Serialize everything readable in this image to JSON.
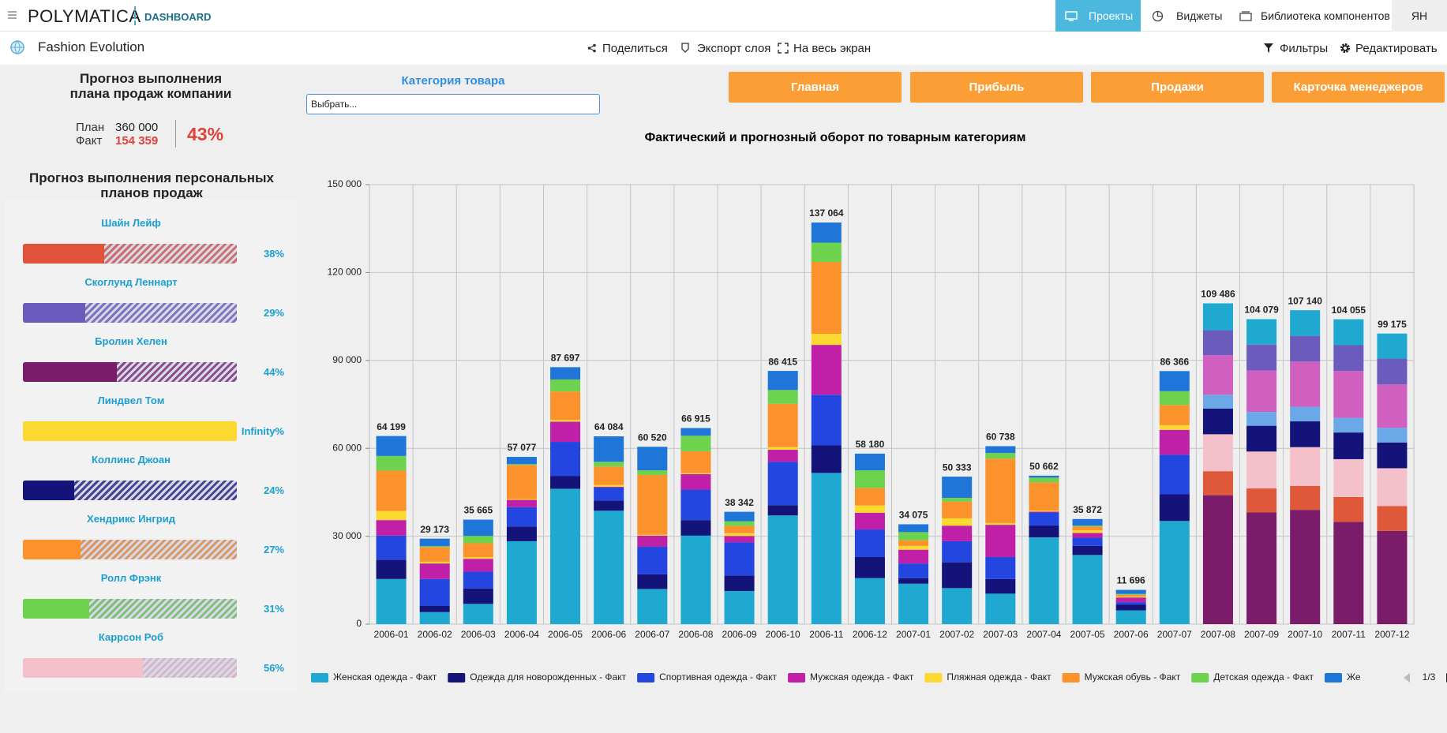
{
  "header": {
    "logo": "POLYMATICA",
    "section": "DASHBOARD",
    "nav": [
      "Проекты",
      "Виджеты",
      "Библиотека компонентов"
    ],
    "user": "ЯН",
    "page_title": "Fashion Evolution",
    "actions": [
      "Поделиться",
      "Экспорт слоя",
      "На весь экран"
    ],
    "tools": [
      "Фильтры",
      "Редактировать"
    ]
  },
  "kpi": {
    "title": "Прогноз выполнения плана продаж компании",
    "plan_label": "План",
    "plan": "360 000",
    "fact_label": "Факт",
    "fact": "154 359",
    "percent": "43%"
  },
  "managers": {
    "title": "Прогноз выполнения персональных планов продаж",
    "items": [
      {
        "name": "Шайн Лейф",
        "value": 38,
        "value_label": "38%",
        "color": "#e0533a"
      },
      {
        "name": "Скоглунд Леннарт",
        "value": 29,
        "value_label": "29%",
        "color": "#6a5bbd"
      },
      {
        "name": "Бролин Хелен",
        "value": 44,
        "value_label": "44%",
        "color": "#7b1c6a"
      },
      {
        "name": "Линдвел Том",
        "value": null,
        "value_label": "Infinity%",
        "color": "#fcd92e"
      },
      {
        "name": "Коллинс Джоан",
        "value": 24,
        "value_label": "24%",
        "color": "#13137a"
      },
      {
        "name": "Хендрикс Ингрид",
        "value": 27,
        "value_label": "27%",
        "color": "#fb922b"
      },
      {
        "name": "Ролл Фрэнк",
        "value": 31,
        "value_label": "31%",
        "color": "#6dd24e"
      },
      {
        "name": "Каррсон Роб",
        "value": 56,
        "value_label": "56%",
        "color": "#f4c0ca"
      }
    ]
  },
  "filter": {
    "label": "Категория товара",
    "placeholder": "Выбрать..."
  },
  "tabs": [
    "Главная",
    "Прибыль",
    "Продажи",
    "Карточка менеджеров"
  ],
  "chart_data": {
    "type": "bar",
    "stacked": true,
    "title": "Фактический и прогнозный оборот по товарным категориям",
    "categories": [
      "2006-01",
      "2006-02",
      "2006-03",
      "2006-04",
      "2006-05",
      "2006-06",
      "2006-07",
      "2006-08",
      "2006-09",
      "2006-10",
      "2006-11",
      "2006-12",
      "2007-01",
      "2007-02",
      "2007-03",
      "2007-04",
      "2007-05",
      "2007-06",
      "2007-07",
      "2007-08",
      "2007-09",
      "2007-10",
      "2007-11",
      "2007-12"
    ],
    "series": [
      {
        "name": "Женская одежда - Факт",
        "color": "#1fa8d0",
        "values": [
          15400,
          4100,
          6900,
          28300,
          46200,
          38700,
          12000,
          30200,
          11300,
          37100,
          51600,
          15700,
          13800,
          12300,
          10400,
          29600,
          23600,
          4700,
          35200,
          null,
          null,
          null,
          null,
          null
        ]
      },
      {
        "name": "Одежда для новорожденных - Факт",
        "color": "#13137a",
        "values": [
          6600,
          2200,
          5300,
          5000,
          4400,
          3500,
          5000,
          5300,
          5300,
          3500,
          9400,
          7200,
          1900,
          8800,
          5000,
          4100,
          3100,
          1900,
          9100,
          null,
          null,
          null,
          null,
          null
        ]
      },
      {
        "name": "Спортивная одежда - Факт",
        "color": "#2346e0",
        "values": [
          8200,
          9100,
          5700,
          6600,
          11600,
          4400,
          9400,
          10400,
          11300,
          14800,
          17300,
          9400,
          5000,
          7200,
          7500,
          4400,
          2800,
          900,
          13500,
          null,
          null,
          null,
          null,
          null
        ]
      },
      {
        "name": "Мужская одежда - Факт",
        "color": "#c020a8",
        "values": [
          5300,
          5300,
          4400,
          2500,
          6900,
          300,
          3800,
          5300,
          2200,
          4100,
          17000,
          5700,
          4700,
          5300,
          11000,
          300,
          1600,
          1600,
          8500,
          null,
          null,
          null,
          null,
          null
        ]
      },
      {
        "name": "Пляжная одежда - Факт",
        "color": "#fcd92e",
        "values": [
          3100,
          600,
          600,
          300,
          600,
          600,
          300,
          300,
          900,
          900,
          3800,
          2500,
          1300,
          2500,
          600,
          300,
          900,
          300,
          1600,
          null,
          null,
          null,
          null,
          null
        ]
      },
      {
        "name": "Мужская обувь - Факт",
        "color": "#fb922b",
        "values": [
          13800,
          5000,
          4700,
          11600,
          9700,
          6300,
          20400,
          7500,
          2500,
          14800,
          24500,
          6000,
          1900,
          5700,
          22000,
          9700,
          1300,
          600,
          6900,
          null,
          null,
          null,
          null,
          null
        ]
      },
      {
        "name": "Детская одежда - Факт",
        "color": "#6dd24e",
        "values": [
          5000,
          300,
          2500,
          300,
          4100,
          1600,
          1600,
          5300,
          1600,
          4700,
          6600,
          6000,
          2800,
          1300,
          1900,
          1600,
          300,
          300,
          4700,
          null,
          null,
          null,
          null,
          null
        ]
      },
      {
        "name": "Же",
        "color": "#1f76d8",
        "values": [
          6799,
          2573,
          5565,
          2477,
          4197,
          8684,
          8020,
          2615,
          3242,
          6515,
          6864,
          5680,
          2675,
          7233,
          2338,
          662,
          2272,
          1396,
          6866,
          null,
          null,
          null,
          null,
          null
        ]
      },
      {
        "color": "#ffffff",
        "show_labels": true,
        "values": [
          null,
          null,
          null,
          null,
          null,
          null,
          null,
          null,
          null,
          null,
          null,
          null,
          null,
          null,
          null,
          null,
          null,
          null,
          null,
          0,
          0,
          0,
          0,
          0
        ]
      },
      {
        "color": "#7b1c6a",
        "values": [
          null,
          null,
          null,
          null,
          null,
          null,
          null,
          null,
          null,
          null,
          null,
          null,
          null,
          null,
          null,
          null,
          null,
          null,
          null,
          44000,
          38100,
          39000,
          34900,
          31800
        ]
      },
      {
        "color": "#e0583a",
        "values": [
          null,
          null,
          null,
          null,
          null,
          null,
          null,
          null,
          null,
          null,
          null,
          null,
          null,
          null,
          null,
          null,
          null,
          null,
          null,
          8200,
          8200,
          8200,
          8500,
          8500
        ]
      },
      {
        "color": "#f4c0ca",
        "values": [
          null,
          null,
          null,
          null,
          null,
          null,
          null,
          null,
          null,
          null,
          null,
          null,
          null,
          null,
          null,
          null,
          null,
          null,
          null,
          12600,
          12600,
          13200,
          12900,
          12900
        ]
      },
      {
        "color": "#13137a",
        "values": [
          null,
          null,
          null,
          null,
          null,
          null,
          null,
          null,
          null,
          null,
          null,
          null,
          null,
          null,
          null,
          null,
          null,
          null,
          null,
          8800,
          8800,
          8800,
          9100,
          8800
        ]
      },
      {
        "color": "#6ba8e8",
        "values": [
          null,
          null,
          null,
          null,
          null,
          null,
          null,
          null,
          null,
          null,
          null,
          null,
          null,
          null,
          null,
          null,
          null,
          null,
          null,
          4700,
          4700,
          5000,
          5000,
          5000
        ]
      },
      {
        "color": "#d060c0",
        "values": [
          null,
          null,
          null,
          null,
          null,
          null,
          null,
          null,
          null,
          null,
          null,
          null,
          null,
          null,
          null,
          null,
          null,
          null,
          null,
          13500,
          14200,
          15400,
          16000,
          14800
        ]
      },
      {
        "color": "#6a5bbd",
        "values": [
          null,
          null,
          null,
          null,
          null,
          null,
          null,
          null,
          null,
          null,
          null,
          null,
          null,
          null,
          null,
          null,
          null,
          null,
          null,
          8500,
          8800,
          8800,
          8800,
          8800
        ]
      },
      {
        "color": "#1fa8d0",
        "values": [
          null,
          null,
          null,
          null,
          null,
          null,
          null,
          null,
          null,
          null,
          null,
          null,
          null,
          null,
          null,
          null,
          null,
          null,
          null,
          9186,
          8679,
          8740,
          8855,
          8575
        ]
      }
    ],
    "totals": [
      64199,
      29173,
      35665,
      57077,
      87697,
      64084,
      60520,
      66915,
      38342,
      86415,
      137064,
      58180,
      34075,
      50333,
      60738,
      50662,
      35872,
      11696,
      86366,
      109486,
      104079,
      107140,
      104055,
      99175
    ],
    "total_labels": [
      "64 199",
      "29 173",
      "35 665",
      "57 077",
      "87 697",
      "64 084",
      "60 520",
      "66 915",
      "38 342",
      "86 415",
      "137 064",
      "58 180",
      "34 075",
      "50 333",
      "60 738",
      "50 662",
      "35 872",
      "11 696",
      "86 366",
      "109 486",
      "104 079",
      "107 140",
      "104 055",
      "99 175"
    ],
    "ylim": [
      0,
      150000
    ],
    "yticks": [
      0,
      {
        "value": 30000,
        "label": "30 000"
      },
      {
        "value": 60000,
        "label": "60 000"
      },
      {
        "value": 90000,
        "label": "90 000"
      },
      {
        "value": 120000,
        "label": "120 000"
      },
      {
        "value": 150000,
        "label": "150 000"
      }
    ],
    "grid": true,
    "legend_page": "1/3"
  }
}
